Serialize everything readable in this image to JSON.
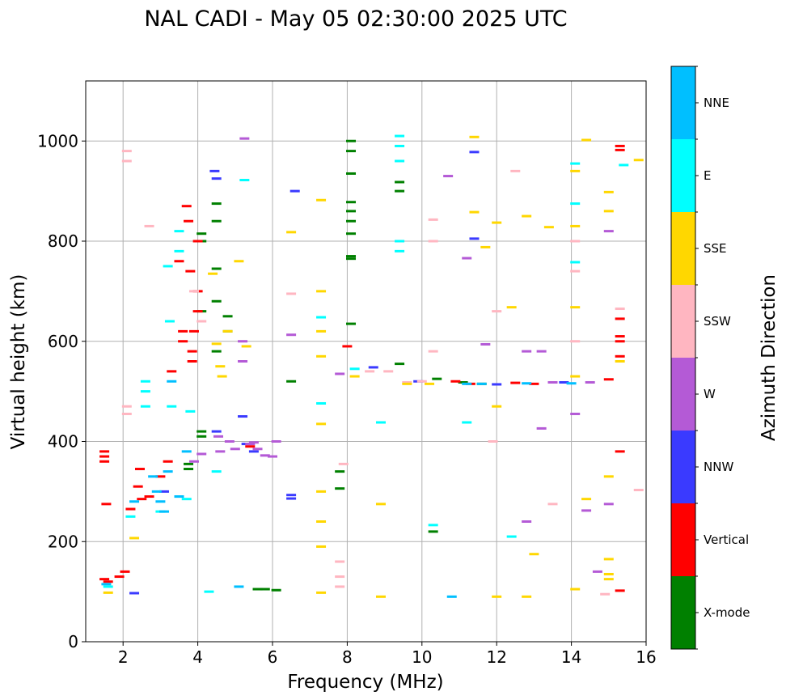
{
  "chart_data": {
    "type": "scatter",
    "title": "NAL CADI - May 05 02:30:00 2025 UTC",
    "xlabel": "Frequency (MHz)",
    "ylabel": "Virtual height (km)",
    "xlim": [
      1,
      16
    ],
    "ylim": [
      0,
      1120
    ],
    "xticks": [
      2,
      4,
      6,
      8,
      10,
      12,
      14,
      16
    ],
    "yticks": [
      0,
      200,
      400,
      600,
      800,
      1000
    ],
    "grid": true,
    "colorbar_label": "Azimuth Direction",
    "categories": [
      {
        "name": "X-mode",
        "color": "#008000"
      },
      {
        "name": "Vertical",
        "color": "#ff0000"
      },
      {
        "name": "NNW",
        "color": "#3a3aff"
      },
      {
        "name": "W",
        "color": "#b45ad6"
      },
      {
        "name": "SSW",
        "color": "#ffb6c1"
      },
      {
        "name": "SSE",
        "color": "#ffd700"
      },
      {
        "name": "E",
        "color": "#00ffff"
      },
      {
        "name": "NNE",
        "color": "#00bfff"
      }
    ],
    "series": [
      {
        "name": "X-mode",
        "points": [
          [
            3.75,
            345
          ],
          [
            3.75,
            355
          ],
          [
            4.1,
            815
          ],
          [
            4.1,
            800
          ],
          [
            4.1,
            660
          ],
          [
            4.1,
            420
          ],
          [
            4.1,
            410
          ],
          [
            4.5,
            875
          ],
          [
            4.5,
            840
          ],
          [
            4.5,
            745
          ],
          [
            4.5,
            680
          ],
          [
            4.5,
            580
          ],
          [
            4.8,
            650
          ],
          [
            4.8,
            620
          ],
          [
            5.6,
            105
          ],
          [
            5.8,
            105
          ],
          [
            6.1,
            103
          ],
          [
            6.5,
            520
          ],
          [
            7.8,
            306
          ],
          [
            7.8,
            340
          ],
          [
            8.1,
            1000
          ],
          [
            8.1,
            980
          ],
          [
            8.1,
            935
          ],
          [
            8.1,
            878
          ],
          [
            8.1,
            860
          ],
          [
            8.1,
            840
          ],
          [
            8.1,
            815
          ],
          [
            8.1,
            770
          ],
          [
            8.1,
            765
          ],
          [
            8.1,
            635
          ],
          [
            9.4,
            900
          ],
          [
            9.4,
            918
          ],
          [
            9.4,
            555
          ],
          [
            10.3,
            220
          ],
          [
            10.4,
            525
          ],
          [
            11.1,
            518
          ],
          [
            11.6,
            515
          ]
        ]
      },
      {
        "name": "Vertical",
        "points": [
          [
            1.5,
            370
          ],
          [
            1.5,
            380
          ],
          [
            1.5,
            360
          ],
          [
            1.55,
            275
          ],
          [
            1.5,
            125
          ],
          [
            1.6,
            120
          ],
          [
            1.9,
            130
          ],
          [
            2.05,
            140
          ],
          [
            2.2,
            265
          ],
          [
            2.4,
            310
          ],
          [
            2.45,
            345
          ],
          [
            2.5,
            285
          ],
          [
            2.7,
            290
          ],
          [
            3.0,
            330
          ],
          [
            3.2,
            360
          ],
          [
            3.3,
            540
          ],
          [
            3.5,
            760
          ],
          [
            3.6,
            620
          ],
          [
            3.6,
            600
          ],
          [
            3.7,
            870
          ],
          [
            3.75,
            840
          ],
          [
            3.8,
            740
          ],
          [
            3.85,
            580
          ],
          [
            3.85,
            560
          ],
          [
            3.9,
            620
          ],
          [
            4.0,
            700
          ],
          [
            4.0,
            800
          ],
          [
            4.0,
            660
          ],
          [
            5.4,
            390
          ],
          [
            8.0,
            590
          ],
          [
            10.9,
            520
          ],
          [
            11.3,
            515
          ],
          [
            12.5,
            517
          ],
          [
            13.0,
            515
          ],
          [
            15.3,
            990
          ],
          [
            15.3,
            982
          ],
          [
            15.3,
            645
          ],
          [
            15.3,
            610
          ],
          [
            15.3,
            600
          ],
          [
            15.3,
            570
          ],
          [
            15.3,
            380
          ],
          [
            15.3,
            102
          ],
          [
            15.0,
            524
          ]
        ]
      },
      {
        "name": "NNW",
        "points": [
          [
            2.3,
            97
          ],
          [
            3.1,
            300
          ],
          [
            4.45,
            940
          ],
          [
            4.5,
            925
          ],
          [
            4.5,
            420
          ],
          [
            5.2,
            450
          ],
          [
            5.3,
            395
          ],
          [
            5.5,
            380
          ],
          [
            6.5,
            293
          ],
          [
            6.5,
            286
          ],
          [
            6.6,
            900
          ],
          [
            8.7,
            548
          ],
          [
            9.9,
            520
          ],
          [
            11.4,
            978
          ],
          [
            11.4,
            805
          ],
          [
            12.0,
            514
          ],
          [
            13.8,
            518
          ]
        ]
      },
      {
        "name": "W",
        "points": [
          [
            3.9,
            360
          ],
          [
            4.1,
            375
          ],
          [
            4.55,
            410
          ],
          [
            4.6,
            380
          ],
          [
            4.85,
            400
          ],
          [
            5.0,
            385
          ],
          [
            5.2,
            560
          ],
          [
            5.2,
            600
          ],
          [
            5.25,
            1005
          ],
          [
            5.4,
            395
          ],
          [
            5.5,
            398
          ],
          [
            5.6,
            385
          ],
          [
            5.8,
            372
          ],
          [
            6.0,
            370
          ],
          [
            6.1,
            400
          ],
          [
            6.5,
            613
          ],
          [
            7.8,
            535
          ],
          [
            10.7,
            930
          ],
          [
            11.2,
            766
          ],
          [
            11.7,
            594
          ],
          [
            12.8,
            240
          ],
          [
            12.8,
            580
          ],
          [
            13.2,
            580
          ],
          [
            13.2,
            426
          ],
          [
            13.5,
            518
          ],
          [
            14.1,
            455
          ],
          [
            14.4,
            262
          ],
          [
            14.5,
            518
          ],
          [
            15.0,
            820
          ],
          [
            15.0,
            275
          ],
          [
            14.7,
            140
          ]
        ]
      },
      {
        "name": "SSW",
        "points": [
          [
            2.1,
            980
          ],
          [
            2.1,
            960
          ],
          [
            2.1,
            470
          ],
          [
            2.1,
            455
          ],
          [
            2.7,
            830
          ],
          [
            3.9,
            700
          ],
          [
            4.1,
            640
          ],
          [
            6.5,
            695
          ],
          [
            7.8,
            130
          ],
          [
            7.8,
            160
          ],
          [
            7.8,
            110
          ],
          [
            7.9,
            355
          ],
          [
            8.6,
            540
          ],
          [
            9.1,
            540
          ],
          [
            9.6,
            518
          ],
          [
            10.0,
            520
          ],
          [
            10.3,
            843
          ],
          [
            10.3,
            800
          ],
          [
            10.3,
            580
          ],
          [
            11.9,
            400
          ],
          [
            12.0,
            660
          ],
          [
            12.5,
            940
          ],
          [
            13.5,
            275
          ],
          [
            14.1,
            800
          ],
          [
            14.1,
            740
          ],
          [
            14.1,
            600
          ],
          [
            14.9,
            95
          ],
          [
            15.3,
            665
          ],
          [
            15.8,
            303
          ]
        ]
      },
      {
        "name": "SSE",
        "points": [
          [
            1.6,
            98
          ],
          [
            2.3,
            207
          ],
          [
            4.4,
            735
          ],
          [
            4.5,
            595
          ],
          [
            4.6,
            550
          ],
          [
            4.65,
            530
          ],
          [
            4.8,
            620
          ],
          [
            5.1,
            760
          ],
          [
            5.3,
            590
          ],
          [
            6.5,
            818
          ],
          [
            7.3,
            882
          ],
          [
            7.3,
            700
          ],
          [
            7.3,
            620
          ],
          [
            7.3,
            570
          ],
          [
            7.3,
            435
          ],
          [
            7.3,
            300
          ],
          [
            7.3,
            240
          ],
          [
            7.3,
            190
          ],
          [
            7.3,
            98
          ],
          [
            8.2,
            530
          ],
          [
            8.9,
            275
          ],
          [
            8.9,
            90
          ],
          [
            9.6,
            515
          ],
          [
            10.2,
            515
          ],
          [
            11.4,
            1008
          ],
          [
            11.4,
            858
          ],
          [
            11.7,
            788
          ],
          [
            12.0,
            837
          ],
          [
            12.0,
            470
          ],
          [
            12.0,
            90
          ],
          [
            12.4,
            668
          ],
          [
            12.8,
            850
          ],
          [
            12.8,
            90
          ],
          [
            13.0,
            175
          ],
          [
            13.4,
            828
          ],
          [
            14.4,
            1002
          ],
          [
            14.1,
            940
          ],
          [
            14.1,
            830
          ],
          [
            14.1,
            668
          ],
          [
            14.1,
            530
          ],
          [
            14.1,
            105
          ],
          [
            14.4,
            285
          ],
          [
            15.0,
            898
          ],
          [
            15.0,
            860
          ],
          [
            15.0,
            330
          ],
          [
            15.0,
            165
          ],
          [
            15.0,
            135
          ],
          [
            15.0,
            125
          ],
          [
            15.3,
            560
          ],
          [
            15.8,
            962
          ]
        ]
      },
      {
        "name": "E",
        "points": [
          [
            1.6,
            110
          ],
          [
            2.2,
            250
          ],
          [
            2.6,
            470
          ],
          [
            2.6,
            500
          ],
          [
            2.6,
            520
          ],
          [
            3.0,
            260
          ],
          [
            3.2,
            750
          ],
          [
            3.25,
            640
          ],
          [
            3.3,
            470
          ],
          [
            3.5,
            780
          ],
          [
            3.5,
            820
          ],
          [
            3.5,
            290
          ],
          [
            3.7,
            285
          ],
          [
            3.8,
            460
          ],
          [
            4.3,
            100
          ],
          [
            4.5,
            340
          ],
          [
            5.25,
            922
          ],
          [
            7.3,
            648
          ],
          [
            7.3,
            476
          ],
          [
            8.2,
            545
          ],
          [
            8.9,
            438
          ],
          [
            9.4,
            1010
          ],
          [
            9.4,
            990
          ],
          [
            9.4,
            960
          ],
          [
            9.4,
            800
          ],
          [
            9.4,
            780
          ],
          [
            10.3,
            233
          ],
          [
            11.2,
            438
          ],
          [
            12.4,
            210
          ],
          [
            14.1,
            955
          ],
          [
            14.1,
            875
          ],
          [
            14.1,
            758
          ],
          [
            15.4,
            952
          ]
        ]
      },
      {
        "name": "NNE",
        "points": [
          [
            1.55,
            115
          ],
          [
            2.3,
            280
          ],
          [
            2.8,
            330
          ],
          [
            2.9,
            300
          ],
          [
            3.0,
            280
          ],
          [
            3.1,
            260
          ],
          [
            3.2,
            340
          ],
          [
            3.3,
            520
          ],
          [
            3.5,
            290
          ],
          [
            3.7,
            380
          ],
          [
            5.1,
            110
          ],
          [
            10.8,
            90
          ],
          [
            11.2,
            515
          ],
          [
            12.8,
            516
          ],
          [
            14.0,
            516
          ],
          [
            11.6,
            515
          ]
        ]
      }
    ]
  }
}
